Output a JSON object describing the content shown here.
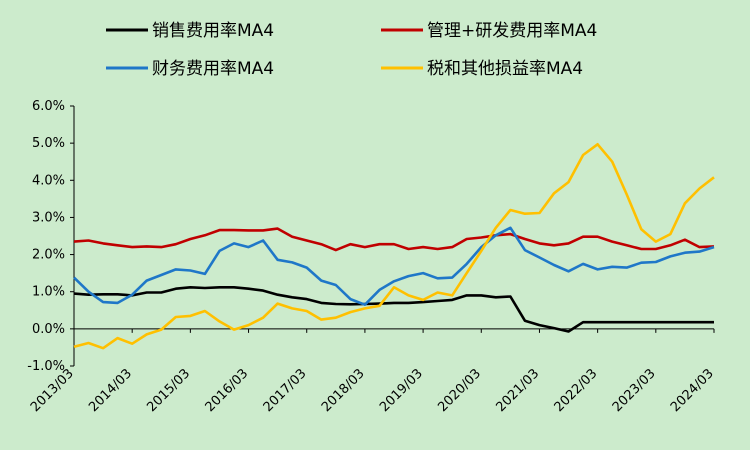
{
  "chart_data": {
    "type": "line",
    "title": "",
    "xlabel": "",
    "ylabel": "",
    "ylim": [
      -1.0,
      6.0
    ],
    "y_ticks": [
      "-1.0%",
      "0.0%",
      "1.0%",
      "2.0%",
      "3.0%",
      "4.0%",
      "5.0%",
      "6.0%"
    ],
    "x_tick_labels": [
      "2013/03",
      "2014/03",
      "2015/03",
      "2016/03",
      "2017/03",
      "2018/03",
      "2019/03",
      "2020/03",
      "2021/03",
      "2022/03",
      "2023/03",
      "2024/03"
    ],
    "x": [
      "2013/03",
      "2013/06",
      "2013/09",
      "2013/12",
      "2014/03",
      "2014/06",
      "2014/09",
      "2014/12",
      "2015/03",
      "2015/06",
      "2015/09",
      "2015/12",
      "2016/03",
      "2016/06",
      "2016/09",
      "2016/12",
      "2017/03",
      "2017/06",
      "2017/09",
      "2017/12",
      "2018/03",
      "2018/06",
      "2018/09",
      "2018/12",
      "2019/03",
      "2019/06",
      "2019/09",
      "2019/12",
      "2020/03",
      "2020/06",
      "2020/09",
      "2020/12",
      "2021/03",
      "2021/06",
      "2021/09",
      "2021/12",
      "2022/03",
      "2022/06",
      "2022/09",
      "2022/12",
      "2023/03",
      "2023/06",
      "2023/09",
      "2023/12",
      "2024/03"
    ],
    "legend_position": "top",
    "grid": false,
    "series": [
      {
        "name": "销售费用率MA4",
        "color": "#000000",
        "values": [
          0.95,
          0.92,
          0.93,
          0.93,
          0.9,
          0.98,
          0.98,
          1.08,
          1.12,
          1.1,
          1.12,
          1.12,
          1.08,
          1.03,
          0.92,
          0.85,
          0.8,
          0.7,
          0.67,
          0.66,
          0.67,
          0.68,
          0.7,
          0.7,
          0.72,
          0.75,
          0.78,
          0.9,
          0.9,
          0.85,
          0.87,
          0.22,
          0.1,
          0.02,
          -0.07,
          0.18,
          0.18,
          0.18,
          0.18,
          0.18,
          0.18,
          0.18,
          0.18,
          0.18,
          0.18
        ]
      },
      {
        "name": "管理+研发费用率MA4",
        "color": "#c00000",
        "values": [
          2.35,
          2.38,
          2.3,
          2.25,
          2.2,
          2.22,
          2.2,
          2.28,
          2.42,
          2.52,
          2.66,
          2.66,
          2.65,
          2.65,
          2.7,
          2.48,
          2.38,
          2.28,
          2.12,
          2.28,
          2.2,
          2.28,
          2.28,
          2.15,
          2.2,
          2.15,
          2.2,
          2.42,
          2.46,
          2.52,
          2.55,
          2.42,
          2.3,
          2.25,
          2.3,
          2.48,
          2.48,
          2.35,
          2.25,
          2.15,
          2.15,
          2.25,
          2.4,
          2.2,
          2.22
        ]
      },
      {
        "name": "财务费用率MA4",
        "color": "#1f77c8",
        "values": [
          1.38,
          1.0,
          0.72,
          0.7,
          0.92,
          1.3,
          1.45,
          1.6,
          1.57,
          1.48,
          2.1,
          2.3,
          2.2,
          2.38,
          1.86,
          1.79,
          1.65,
          1.3,
          1.18,
          0.8,
          0.65,
          1.05,
          1.28,
          1.42,
          1.5,
          1.36,
          1.38,
          1.75,
          2.2,
          2.52,
          2.72,
          2.12,
          1.92,
          1.72,
          1.55,
          1.75,
          1.6,
          1.67,
          1.65,
          1.78,
          1.8,
          1.95,
          2.05,
          2.08,
          2.2
        ]
      },
      {
        "name": "税和其他损益率MA4",
        "color": "#ffc000",
        "values": [
          -0.48,
          -0.38,
          -0.52,
          -0.25,
          -0.4,
          -0.15,
          -0.02,
          0.32,
          0.35,
          0.48,
          0.2,
          -0.02,
          0.1,
          0.3,
          0.68,
          0.55,
          0.48,
          0.25,
          0.3,
          0.45,
          0.55,
          0.62,
          1.12,
          0.9,
          0.78,
          0.98,
          0.9,
          1.5,
          2.1,
          2.72,
          3.2,
          3.1,
          3.12,
          3.65,
          3.95,
          4.68,
          4.97,
          4.5,
          3.62,
          2.68,
          2.35,
          2.55,
          3.38,
          3.78,
          4.08
        ]
      }
    ]
  }
}
